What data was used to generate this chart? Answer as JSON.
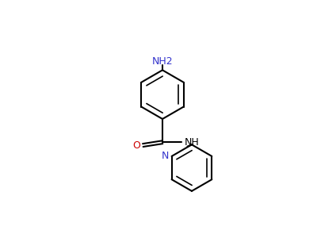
{
  "background": "#ffffff",
  "bond_color": "#000000",
  "n_color": "#3333cc",
  "o_color": "#cc0000",
  "nh2_label": "NH2",
  "nh_label": "NH",
  "n_label": "N",
  "o_label": "O",
  "figsize": [
    4.0,
    3.0
  ],
  "dpi": 100,
  "lw": 1.5,
  "lw_inner": 1.2,
  "fs": 9.0
}
